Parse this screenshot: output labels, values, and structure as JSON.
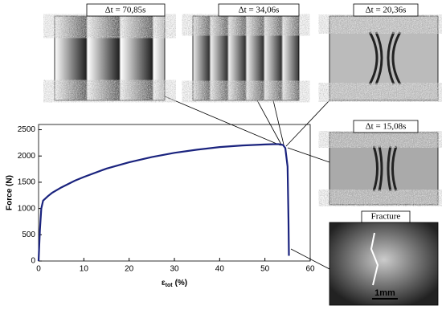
{
  "chart_data": {
    "type": "line",
    "y_label": "Force (N)",
    "x_label": {
      "symbol": "ε",
      "subscript": "tot",
      "unit": "(%)"
    },
    "x": [
      0,
      0.3,
      0.6,
      1,
      2,
      3,
      5,
      8,
      10,
      15,
      20,
      25,
      30,
      35,
      40,
      45,
      50,
      52,
      53,
      54,
      54.5,
      55,
      55.2,
      55.3
    ],
    "series": [
      {
        "color": "#1a237e",
        "values": [
          0,
          600,
          1000,
          1150,
          1230,
          1300,
          1400,
          1530,
          1600,
          1760,
          1880,
          1980,
          2060,
          2120,
          2170,
          2200,
          2220,
          2225,
          2225,
          2210,
          2150,
          1800,
          800,
          100
        ]
      }
    ],
    "xlim": [
      0,
      60
    ],
    "xticks": [
      0,
      10,
      20,
      30,
      40,
      50,
      60
    ],
    "ylim": [
      0,
      2600
    ],
    "yticks": [
      0,
      500,
      1000,
      1500,
      2000,
      2500
    ]
  },
  "insets": [
    {
      "label": "Δt = 70,85s"
    },
    {
      "label": "Δt = 34,06s"
    },
    {
      "label": "Δt = 20,36s"
    },
    {
      "label": "Δt = 15,08s"
    },
    {
      "label": "Fracture",
      "scale_bar": "1mm"
    }
  ]
}
